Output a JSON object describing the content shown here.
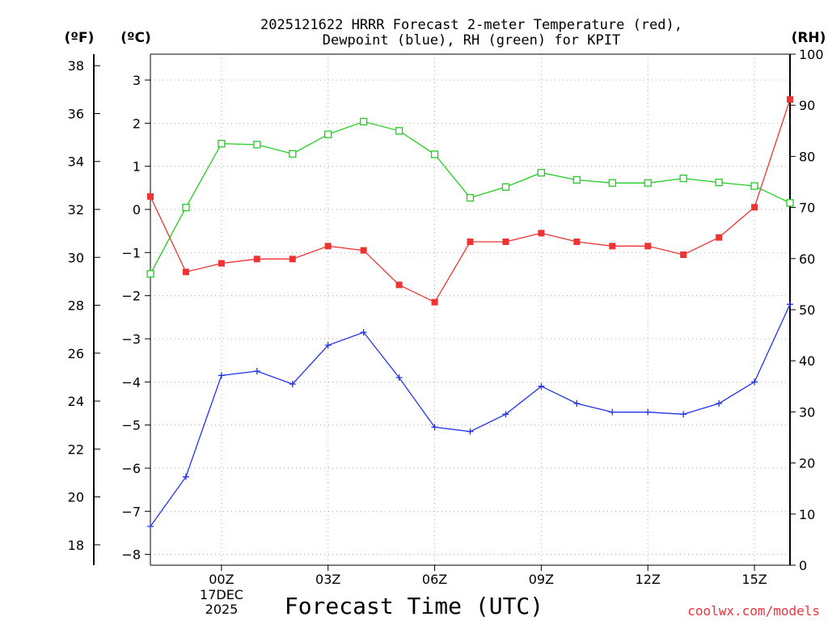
{
  "chart_data": {
    "type": "line",
    "title": [
      "2025121622 HRRR Forecast 2-meter Temperature (red),",
      "Dewpoint (blue), RH (green) for KPIT"
    ],
    "xlabel": "Forecast Time (UTC)",
    "units": {
      "fahrenheit": "(ºF)",
      "celsius": "(ºC)",
      "rh": "(RH)"
    },
    "date_label": [
      "17DEC",
      "2025"
    ],
    "credit": "coolwx.com/models",
    "x_hours": [
      -2,
      -1,
      0,
      1,
      2,
      3,
      4,
      5,
      6,
      7,
      8,
      9,
      10,
      11,
      12,
      13,
      14,
      15,
      16
    ],
    "xlim": [
      -2,
      16
    ],
    "x_ticks": [
      {
        "hour": 0,
        "label": "00Z"
      },
      {
        "hour": 3,
        "label": "03Z"
      },
      {
        "hour": 6,
        "label": "06Z"
      },
      {
        "hour": 9,
        "label": "09Z"
      },
      {
        "hour": 12,
        "label": "12Z"
      },
      {
        "hour": 15,
        "label": "15Z"
      }
    ],
    "left_axis_c": {
      "ylim": [
        -8.25,
        3.6
      ],
      "ticks": [
        3,
        2,
        1,
        0,
        -1,
        -2,
        -3,
        -4,
        -5,
        -6,
        -7,
        -8
      ],
      "tick_labels": [
        "3",
        "2",
        "1",
        "0",
        "−1",
        "−2",
        "−3",
        "−4",
        "−5",
        "−6",
        "−7",
        "−8"
      ]
    },
    "outer_axis_f": {
      "ticks": [
        38,
        36,
        34,
        32,
        30,
        28,
        26,
        24,
        22,
        20,
        18
      ],
      "tick_labels": [
        "38",
        "36",
        "34",
        "32",
        "30",
        "28",
        "26",
        "24",
        "22",
        "20",
        "18"
      ]
    },
    "right_axis_rh": {
      "ylim": [
        0,
        100
      ],
      "ticks": [
        100,
        90,
        80,
        70,
        60,
        50,
        40,
        30,
        20,
        10,
        0
      ],
      "tick_labels": [
        "100",
        "90",
        "80",
        "70",
        "60",
        "50",
        "40",
        "30",
        "20",
        "10",
        "0"
      ]
    },
    "series": [
      {
        "name": "Temperature (°C)",
        "color": "red",
        "axis": "celsius",
        "marker": "filled-square",
        "values": [
          0.3,
          -1.45,
          -1.25,
          -1.15,
          -1.15,
          -0.85,
          -0.95,
          -1.75,
          -2.15,
          -0.75,
          -0.75,
          -0.55,
          -0.75,
          -0.85,
          -0.85,
          -1.05,
          -0.65,
          0.05,
          2.55
        ]
      },
      {
        "name": "Dewpoint (°C)",
        "color": "blue",
        "axis": "celsius",
        "marker": "plus",
        "values": [
          -7.35,
          -6.2,
          -3.85,
          -3.75,
          -4.05,
          -3.15,
          -2.85,
          -3.9,
          -5.05,
          -5.15,
          -4.75,
          -4.1,
          -4.5,
          -4.7,
          -4.7,
          -4.75,
          -4.5,
          -4.0,
          -2.2
        ]
      },
      {
        "name": "RH (%)",
        "color": "green",
        "axis": "rh",
        "marker": "open-square",
        "values": [
          57,
          70,
          82.5,
          82.3,
          80.5,
          84.3,
          86.8,
          85,
          80.4,
          71.9,
          74,
          76.8,
          75.4,
          74.8,
          74.8,
          75.7,
          74.9,
          74.2,
          70.9
        ]
      }
    ]
  }
}
